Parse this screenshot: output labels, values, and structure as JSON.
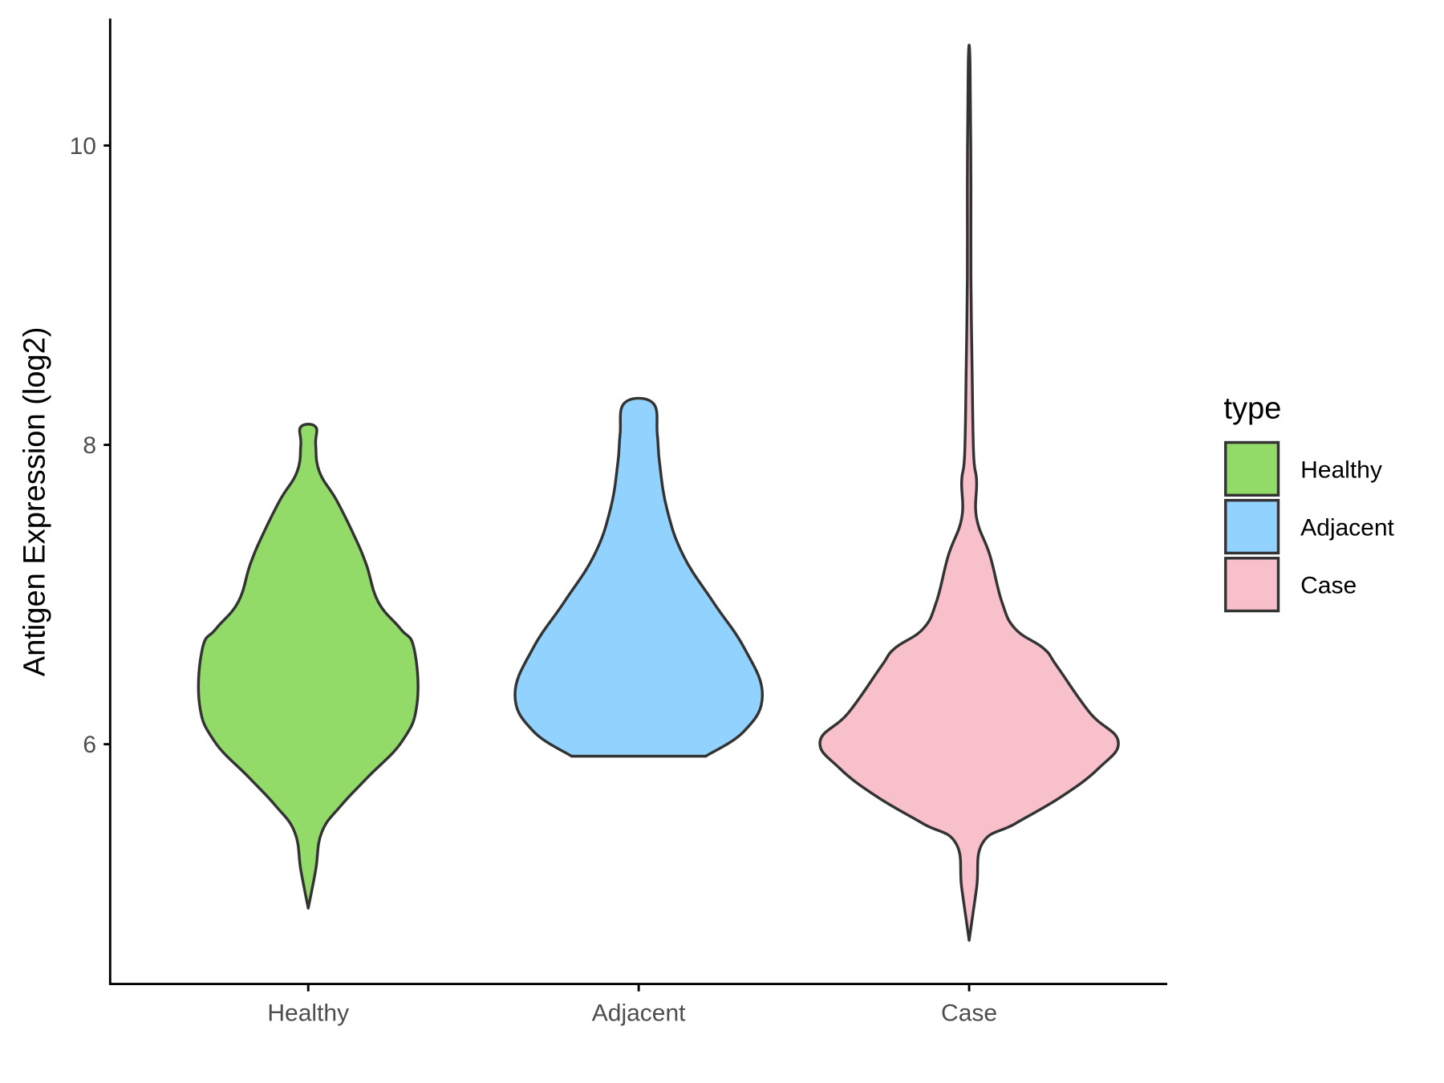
{
  "chart_data": {
    "type": "violin",
    "title": "",
    "xlabel": "",
    "ylabel": "Antigen Expression (log2)",
    "categories": [
      "Healthy",
      "Adjacent",
      "Case"
    ],
    "yticks": [
      6,
      8,
      10
    ],
    "ytick_labels": [
      "6",
      "8",
      "10"
    ],
    "ylim": [
      4.4,
      10.85
    ],
    "grid": false,
    "legend": {
      "title": "type",
      "position": "right",
      "entries": [
        "Healthy",
        "Adjacent",
        "Case"
      ]
    },
    "colors": {
      "Healthy": "#93DB69",
      "Adjacent": "#92D2FE",
      "Case": "#F7C0CB",
      "outline": "#333333"
    },
    "series": [
      {
        "name": "Healthy",
        "min": 4.9,
        "max": 8.12,
        "profile": [
          [
            4.905,
            0
          ],
          [
            5.16,
            0.05
          ],
          [
            5.41,
            0.09
          ],
          [
            5.59,
            0.22
          ],
          [
            5.78,
            0.4
          ],
          [
            6.02,
            0.63
          ],
          [
            6.27,
            0.73
          ],
          [
            6.64,
            0.71
          ],
          [
            6.77,
            0.62
          ],
          [
            6.95,
            0.47
          ],
          [
            7.2,
            0.39
          ],
          [
            7.39,
            0.31
          ],
          [
            7.63,
            0.19
          ],
          [
            7.82,
            0.075
          ],
          [
            8.0,
            0.05
          ],
          [
            8.12,
            0.05
          ]
        ]
      },
      {
        "name": "Adjacent",
        "min": 5.92,
        "max": 8.28,
        "profile": [
          [
            5.92,
            0.45
          ],
          [
            6.09,
            0.71
          ],
          [
            6.33,
            0.83
          ],
          [
            6.64,
            0.71
          ],
          [
            6.95,
            0.5
          ],
          [
            7.26,
            0.3
          ],
          [
            7.57,
            0.19
          ],
          [
            7.88,
            0.14
          ],
          [
            8.07,
            0.125
          ],
          [
            8.28,
            0.095
          ]
        ]
      },
      {
        "name": "Case",
        "min": 4.69,
        "max": 10.55,
        "profile": [
          [
            4.69,
            0
          ],
          [
            5.04,
            0.05
          ],
          [
            5.34,
            0.09
          ],
          [
            5.47,
            0.31
          ],
          [
            5.65,
            0.62
          ],
          [
            5.84,
            0.87
          ],
          [
            6.02,
            1.0
          ],
          [
            6.21,
            0.81
          ],
          [
            6.52,
            0.59
          ],
          [
            6.64,
            0.5
          ],
          [
            6.77,
            0.31
          ],
          [
            6.95,
            0.22
          ],
          [
            7.26,
            0.14
          ],
          [
            7.51,
            0.05
          ],
          [
            7.76,
            0.05
          ],
          [
            7.94,
            0.03
          ],
          [
            8.5,
            0.02
          ],
          [
            9.12,
            0.012
          ],
          [
            9.74,
            0.012
          ],
          [
            10.55,
            0.006
          ]
        ]
      }
    ]
  }
}
